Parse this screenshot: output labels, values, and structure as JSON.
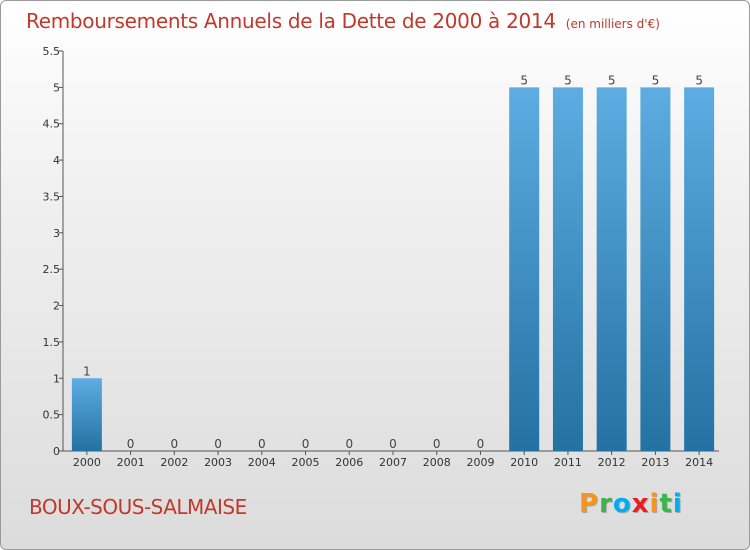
{
  "header": {
    "title": "Remboursements Annuels de la Dette de 2000 à 2014",
    "unit": "(en milliers d'€)"
  },
  "commune": "BOUX-SOUS-SALMAISE",
  "logo": {
    "text": "Proxiti",
    "letters": [
      {
        "char": "P",
        "color": "#f7941d"
      },
      {
        "char": "r",
        "color": "#39b54a"
      },
      {
        "char": "o",
        "color": "#00aeef"
      },
      {
        "char": "x",
        "color": "#ed1c24"
      },
      {
        "char": "i",
        "color": "#f7941d"
      },
      {
        "char": "t",
        "color": "#39b54a"
      },
      {
        "char": "i",
        "color": "#00aeef"
      }
    ]
  },
  "chart_data": {
    "type": "bar",
    "title": "Remboursements Annuels de la Dette de 2000 à 2014",
    "xlabel": "",
    "ylabel": "",
    "categories": [
      "2000",
      "2001",
      "2002",
      "2003",
      "2004",
      "2005",
      "2006",
      "2007",
      "2008",
      "2009",
      "2010",
      "2011",
      "2012",
      "2013",
      "2014"
    ],
    "values": [
      1,
      0,
      0,
      0,
      0,
      0,
      0,
      0,
      0,
      0,
      5,
      5,
      5,
      5,
      5
    ],
    "value_labels": [
      "1",
      "0",
      "0",
      "0",
      "0",
      "0",
      "0",
      "0",
      "0",
      "0",
      "5",
      "5",
      "5",
      "5",
      "5"
    ],
    "ylim": [
      0,
      5.5
    ],
    "yticks": [
      "0",
      "0.5",
      "1",
      "1.5",
      "2",
      "2.5",
      "3",
      "3.5",
      "4",
      "4.5",
      "5",
      "5.5"
    ],
    "grid": false,
    "bar_color_top": "#5dade2",
    "bar_color_bottom": "#2471a3"
  }
}
